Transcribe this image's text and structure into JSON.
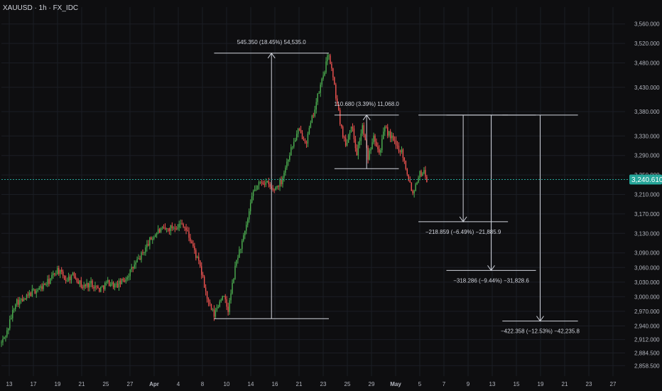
{
  "header": {
    "title": "XAUUSD · 1h · FX_IDC"
  },
  "chart_data": {
    "type": "candlestick",
    "symbol": "XAUUSD",
    "interval": "1h",
    "source": "FX_IDC",
    "current_price": "3,240.610",
    "colors": {
      "background": "#0e0e10",
      "up": "#4caf50",
      "down": "#ef5350",
      "grid": "#1b1d24",
      "axis_text": "#b2b5be",
      "annotation": "#d1d4dc",
      "price_line": "#26a69a",
      "price_badge": "#26a69a"
    },
    "yaxis": {
      "min": 2840,
      "max": 3580,
      "ticks": [
        "3,560.000",
        "3,520.000",
        "3,480.000",
        "3,430.000",
        "3,380.000",
        "3,330.000",
        "3,290.000",
        "3,250.000",
        "3,210.000",
        "3,170.000",
        "3,130.000",
        "3,090.000",
        "3,060.000",
        "3,030.000",
        "3,000.000",
        "2,970.000",
        "2,940.000",
        "2,912.000",
        "2,884.500",
        "2,858.500"
      ]
    },
    "xaxis": {
      "ticks": [
        "13",
        "17",
        "19",
        "21",
        "25",
        "27",
        "Apr",
        "4",
        "8",
        "10",
        "14",
        "16",
        "21",
        "23",
        "25",
        "29",
        "May",
        "5",
        "7",
        "9",
        "13",
        "15",
        "19",
        "21",
        "23",
        "27"
      ],
      "bold": [
        "Apr",
        "May"
      ]
    },
    "anchors": [
      {
        "i": 0,
        "v": 2905
      },
      {
        "i": 4,
        "v": 2928
      },
      {
        "i": 10,
        "v": 2990
      },
      {
        "i": 16,
        "v": 2992
      },
      {
        "i": 22,
        "v": 3010
      },
      {
        "i": 28,
        "v": 3018
      },
      {
        "i": 34,
        "v": 3032
      },
      {
        "i": 40,
        "v": 3056
      },
      {
        "i": 46,
        "v": 3035
      },
      {
        "i": 52,
        "v": 3045
      },
      {
        "i": 58,
        "v": 3020
      },
      {
        "i": 64,
        "v": 3028
      },
      {
        "i": 70,
        "v": 3015
      },
      {
        "i": 76,
        "v": 3030
      },
      {
        "i": 82,
        "v": 3022
      },
      {
        "i": 88,
        "v": 3035
      },
      {
        "i": 94,
        "v": 3060
      },
      {
        "i": 100,
        "v": 3085
      },
      {
        "i": 106,
        "v": 3115
      },
      {
        "i": 112,
        "v": 3135
      },
      {
        "i": 118,
        "v": 3138
      },
      {
        "i": 124,
        "v": 3145
      },
      {
        "i": 130,
        "v": 3150
      },
      {
        "i": 136,
        "v": 3110
      },
      {
        "i": 142,
        "v": 3060
      },
      {
        "i": 148,
        "v": 2985
      },
      {
        "i": 152,
        "v": 2962
      },
      {
        "i": 158,
        "v": 3005
      },
      {
        "i": 162,
        "v": 2972
      },
      {
        "i": 168,
        "v": 3075
      },
      {
        "i": 174,
        "v": 3130
      },
      {
        "i": 180,
        "v": 3215
      },
      {
        "i": 186,
        "v": 3238
      },
      {
        "i": 190,
        "v": 3232
      },
      {
        "i": 194,
        "v": 3218
      },
      {
        "i": 200,
        "v": 3238
      },
      {
        "i": 206,
        "v": 3295
      },
      {
        "i": 212,
        "v": 3340
      },
      {
        "i": 218,
        "v": 3320
      },
      {
        "i": 224,
        "v": 3388
      },
      {
        "i": 230,
        "v": 3455
      },
      {
        "i": 234,
        "v": 3500
      },
      {
        "i": 238,
        "v": 3430
      },
      {
        "i": 242,
        "v": 3360
      },
      {
        "i": 246,
        "v": 3310
      },
      {
        "i": 250,
        "v": 3355
      },
      {
        "i": 254,
        "v": 3295
      },
      {
        "i": 258,
        "v": 3350
      },
      {
        "i": 262,
        "v": 3285
      },
      {
        "i": 266,
        "v": 3335
      },
      {
        "i": 270,
        "v": 3295
      },
      {
        "i": 274,
        "v": 3345
      },
      {
        "i": 278,
        "v": 3330
      },
      {
        "i": 282,
        "v": 3310
      },
      {
        "i": 286,
        "v": 3300
      },
      {
        "i": 290,
        "v": 3255
      },
      {
        "i": 294,
        "v": 3212
      },
      {
        "i": 298,
        "v": 3250
      },
      {
        "i": 302,
        "v": 3258
      },
      {
        "i": 304,
        "v": 3240
      }
    ],
    "measures": [
      {
        "label": "545.350 (18.45%) 54,535.0",
        "x1": 152,
        "x2": 234,
        "arrow": "up",
        "from": 2955,
        "to": 3500
      },
      {
        "label": "110.680 (3.39%) 11,068.0",
        "x1": 238,
        "x2": 284,
        "arrow": "up",
        "from": 3263,
        "to": 3373
      },
      {
        "label": "−218.859 (−6.49%) −21,885.9",
        "x1": 298,
        "x2": 362,
        "arrow": "down",
        "from": 3373,
        "to": 3154
      },
      {
        "label": "−318.286 (−9.44%) −31,828.6",
        "x1": 318,
        "x2": 382,
        "arrow": "down",
        "from": 3373,
        "to": 3054
      },
      {
        "label": "−422.358 (−12.53%) −42,235.8",
        "x1": 358,
        "x2": 412,
        "arrow": "down",
        "from": 3373,
        "to": 2950
      }
    ]
  }
}
